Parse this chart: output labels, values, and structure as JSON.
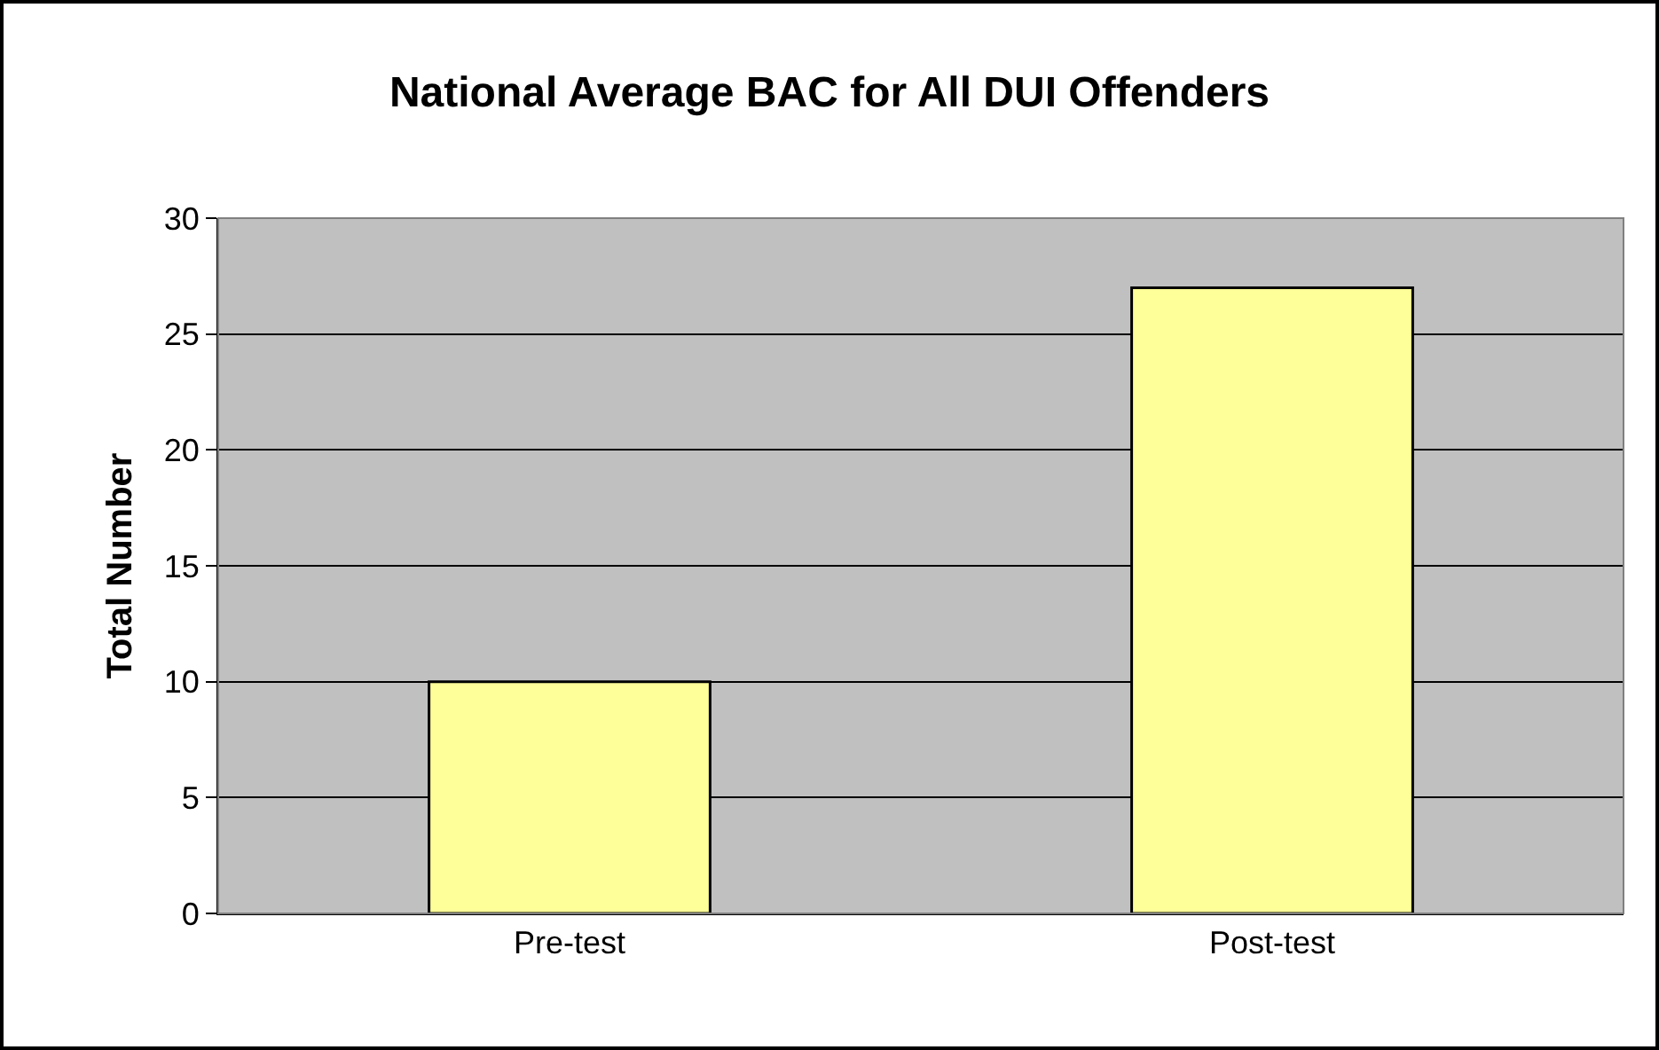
{
  "chart_data": {
    "type": "bar",
    "title": "National Average BAC for All DUI Offenders",
    "ylabel": "Total Number",
    "categories": [
      "Pre-test",
      "Post-test"
    ],
    "values": [
      10,
      27
    ],
    "color": "#ffff99",
    "ylim": [
      0,
      30
    ],
    "yticks": [
      0,
      5,
      10,
      15,
      20,
      25,
      30
    ],
    "grid": "y"
  }
}
